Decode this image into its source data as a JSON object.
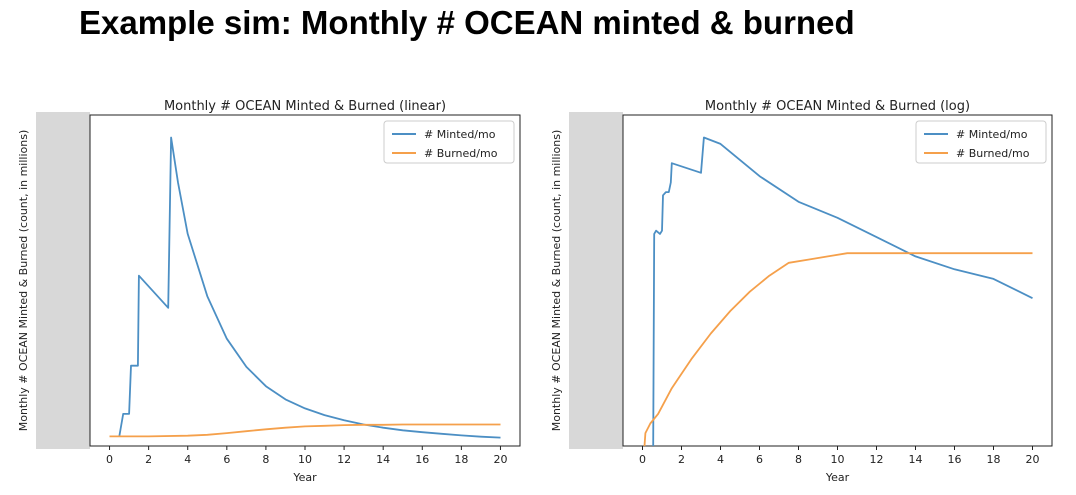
{
  "page": {
    "title": "Example sim: Monthly # OCEAN minted & burned"
  },
  "chart_data": [
    {
      "type": "line",
      "title": "Monthly # OCEAN Minted & Burned (linear)",
      "xlabel": "Year",
      "ylabel": "Monthly # OCEAN Minted & Burned (count, in millions)",
      "yscale": "linear",
      "xlim": [
        -1,
        21
      ],
      "ylim": [
        0,
        1.03
      ],
      "xticks": [
        0,
        2,
        4,
        6,
        8,
        10,
        12,
        14,
        16,
        18,
        20
      ],
      "yticks_visible": false,
      "legend": "top-right",
      "grid": false,
      "series": [
        {
          "name": "# Minted/mo",
          "color": "#4c8fc4",
          "x": [
            0.5,
            0.7,
            1.0,
            1.1,
            1.25,
            1.45,
            1.5,
            3.0,
            3.15,
            3.5,
            4,
            5,
            6,
            7,
            8,
            9,
            10,
            11,
            12,
            13,
            14,
            15,
            16,
            17,
            18,
            19,
            20
          ],
          "y": [
            0.03,
            0.1,
            0.1,
            0.25,
            0.25,
            0.25,
            0.53,
            0.43,
            0.96,
            0.82,
            0.66,
            0.466,
            0.334,
            0.246,
            0.186,
            0.145,
            0.117,
            0.096,
            0.08,
            0.067,
            0.057,
            0.049,
            0.043,
            0.038,
            0.033,
            0.029,
            0.026
          ]
        },
        {
          "name": "# Burned/mo",
          "color": "#f5a04b",
          "x": [
            0,
            2,
            4,
            5,
            6,
            7,
            8,
            9,
            10,
            11,
            12,
            13,
            14,
            15,
            16,
            17,
            18,
            19,
            20
          ],
          "y": [
            0.03,
            0.03,
            0.032,
            0.035,
            0.04,
            0.046,
            0.052,
            0.057,
            0.061,
            0.063,
            0.065,
            0.066,
            0.066,
            0.067,
            0.067,
            0.067,
            0.067,
            0.067,
            0.067
          ]
        }
      ]
    },
    {
      "type": "line",
      "title": "Monthly # OCEAN Minted & Burned (log)",
      "xlabel": "Year",
      "ylabel": "Monthly # OCEAN Minted & Burned (count, in millions)",
      "yscale": "log",
      "xlim": [
        -1,
        21
      ],
      "ylim": [
        0,
        1.03
      ],
      "xticks": [
        0,
        2,
        4,
        6,
        8,
        10,
        12,
        14,
        16,
        18,
        20
      ],
      "yticks_visible": false,
      "legend": "top-right",
      "grid": false,
      "series": [
        {
          "name": "# Minted/mo",
          "color": "#4c8fc4",
          "x": [
            0.55,
            0.6,
            0.7,
            0.9,
            1.0,
            1.05,
            1.2,
            1.35,
            1.45,
            1.5,
            3.0,
            3.15,
            4,
            6,
            8,
            10,
            12,
            14,
            16,
            18,
            20
          ],
          "y": [
            0.0,
            0.66,
            0.67,
            0.66,
            0.67,
            0.78,
            0.79,
            0.79,
            0.82,
            0.88,
            0.85,
            0.96,
            0.94,
            0.84,
            0.76,
            0.71,
            0.65,
            0.59,
            0.55,
            0.52,
            0.46
          ]
        },
        {
          "name": "# Burned/mo",
          "color": "#f5a04b",
          "x": [
            0.1,
            0.15,
            0.4,
            0.8,
            1.5,
            2.5,
            3.5,
            4.5,
            5.5,
            6.5,
            7.5,
            8.5,
            9.5,
            10.5,
            11.5,
            12.5,
            14,
            16,
            18,
            20
          ],
          "y": [
            0.0,
            0.04,
            0.07,
            0.1,
            0.18,
            0.27,
            0.35,
            0.42,
            0.48,
            0.53,
            0.57,
            0.58,
            0.59,
            0.6,
            0.6,
            0.6,
            0.6,
            0.6,
            0.6,
            0.6
          ]
        }
      ]
    }
  ]
}
